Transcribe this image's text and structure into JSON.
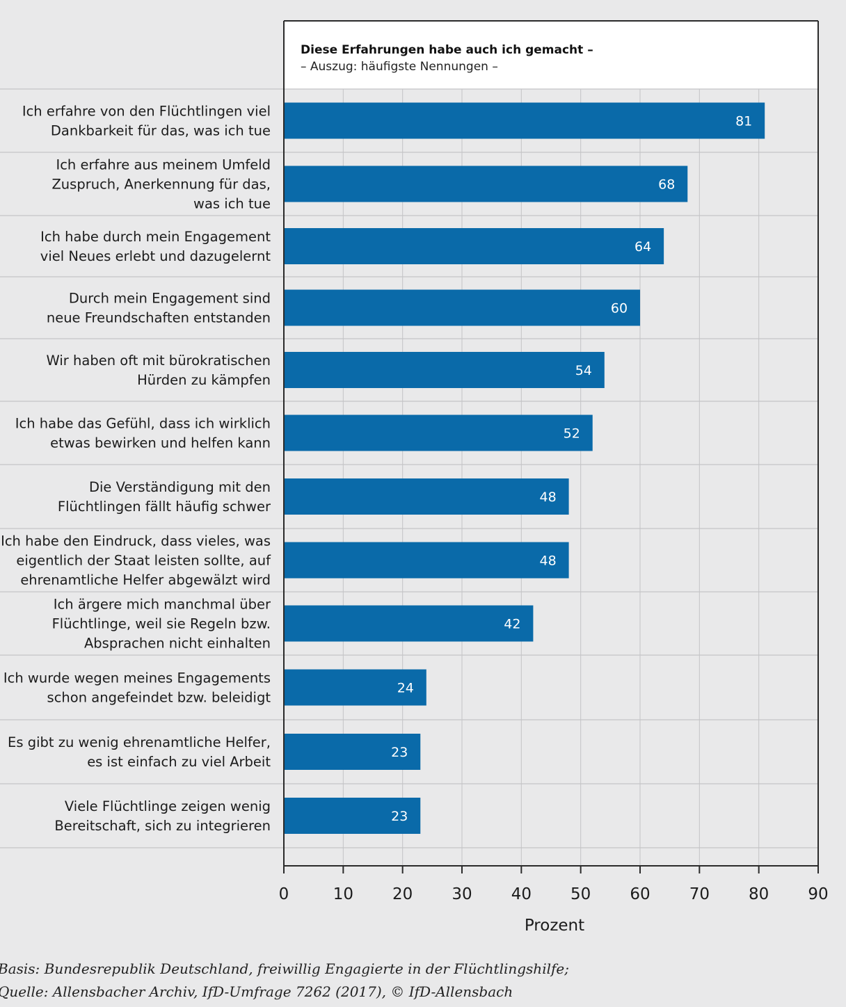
{
  "chart_data": {
    "type": "bar",
    "orientation": "horizontal",
    "header": {
      "title": "Diese Erfahrungen habe auch ich gemacht –",
      "subtitle": "– Auszug: häufigste Nennungen –"
    },
    "xlabel": "Prozent",
    "xlim": [
      0,
      90
    ],
    "xticks": [
      "0",
      "10",
      "20",
      "30",
      "40",
      "50",
      "60",
      "70",
      "80",
      "90"
    ],
    "grid": true,
    "bar_color": "#0a6aa9",
    "categories": [
      [
        "Ich erfahre von den Flüchtlingen viel",
        "Dankbarkeit für das, was ich tue"
      ],
      [
        "Ich erfahre aus meinem Umfeld",
        "Zuspruch, Anerkennung für das,",
        "was ich tue"
      ],
      [
        "Ich habe durch mein Engagement",
        "viel Neues erlebt und dazugelernt"
      ],
      [
        "Durch mein Engagement sind",
        "neue Freundschaften entstanden"
      ],
      [
        "Wir haben oft mit bürokratischen",
        "Hürden zu kämpfen"
      ],
      [
        "Ich habe das Gefühl, dass ich wirklich",
        "etwas bewirken und helfen kann"
      ],
      [
        "Die Verständigung mit den",
        "Flüchtlingen fällt häufig schwer"
      ],
      [
        "Ich habe den Eindruck, dass vieles, was",
        "eigentlich der Staat leisten sollte, auf",
        "ehrenamtliche Helfer abgewälzt wird"
      ],
      [
        "Ich ärgere mich manchmal über",
        "Flüchtlinge, weil sie Regeln bzw.",
        "Absprachen nicht einhalten"
      ],
      [
        "Ich wurde wegen meines Engagements",
        "schon angefeindet bzw. beleidigt"
      ],
      [
        "Es gibt zu wenig ehrenamtliche Helfer,",
        "es ist einfach zu viel Arbeit"
      ],
      [
        "Viele Flüchtlinge zeigen wenig",
        "Bereitschaft, sich zu integrieren"
      ]
    ],
    "values": [
      81,
      68,
      64,
      60,
      54,
      52,
      48,
      48,
      42,
      24,
      23,
      23
    ],
    "value_labels": [
      "81",
      "68",
      "64",
      "60",
      "54",
      "52",
      "48",
      "48",
      "42",
      "24",
      "23",
      "23"
    ],
    "footnote": [
      "Basis: Bundesrepublik Deutschland, freiwillig Engagierte in der Flüchtlingshilfe;",
      "Quelle: Allensbacher Archiv, IfD-Umfrage 7262 (2017), © IfD-Allensbach"
    ]
  }
}
